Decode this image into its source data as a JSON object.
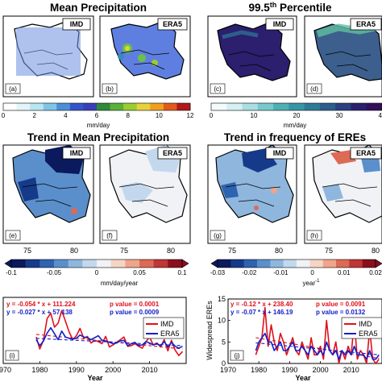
{
  "titles": {
    "mean": "Mean Precipitation",
    "pct_base": "99.5",
    "pct_sup": "th",
    "pct_rest": " Percentile",
    "trend_mean": "Trend in Mean Precipitation",
    "trend_freq": "Trend in frequency of EREs"
  },
  "maps": [
    {
      "panel": "(a)",
      "label": "IMD"
    },
    {
      "panel": "(b)",
      "label": "ERA5"
    },
    {
      "panel": "(c)",
      "label": "IMD"
    },
    {
      "panel": "(d)",
      "label": "ERA5"
    },
    {
      "panel": "(e)",
      "label": "IMD"
    },
    {
      "panel": "(f)",
      "label": "ERA5"
    },
    {
      "panel": "(g)",
      "label": "IMD"
    },
    {
      "panel": "(h)",
      "label": "ERA5"
    }
  ],
  "map_lon_ticks": [
    "75",
    "80"
  ],
  "colorbars": {
    "mean": {
      "ticks": [
        "0",
        "2",
        "4",
        "6",
        "8",
        "10",
        "12"
      ],
      "unit": "mm/day",
      "colors": [
        "#ffffff",
        "#e4f5f8",
        "#b8e6f0",
        "#7fc5e8",
        "#4d8fd6",
        "#3355c8",
        "#3a3fb8",
        "#2f8a3a",
        "#5ab03a",
        "#9acd32",
        "#e6d23a",
        "#f0a020",
        "#e05a1e",
        "#b01a1a"
      ]
    },
    "pct": {
      "ticks": [
        "0",
        "10",
        "20",
        "30",
        "40"
      ],
      "unit": "mm/day",
      "colors": [
        "#f4fbfc",
        "#d6f0f2",
        "#a9dfe2",
        "#78c8cc",
        "#4fb0b4",
        "#3895a4",
        "#2e7a97",
        "#2c5e8c",
        "#2c3f80",
        "#2b1f6e",
        "#33105a"
      ]
    },
    "trend_mean": {
      "ticks": [
        "-0.1",
        "-0.05",
        "0",
        "0.05",
        "0.1"
      ],
      "unit": "mm/day/year",
      "colors": [
        "#0a1a5c",
        "#163a8a",
        "#2e63b0",
        "#5b8fcc",
        "#8fb7dd",
        "#c3d8ec",
        "#f0f2f6",
        "#f7d5c4",
        "#f0a58a",
        "#dc6a55",
        "#c03535",
        "#8a0f1e"
      ]
    },
    "trend_freq": {
      "ticks": [
        "-0.03",
        "-0.02",
        "-0.01",
        "0",
        "0.01",
        "0.02"
      ],
      "unit_base": "year",
      "unit_sup": "-1",
      "colors": [
        "#0a1a5c",
        "#163a8a",
        "#2e63b0",
        "#5b8fcc",
        "#8fb7dd",
        "#c3d8ec",
        "#f0f2f6",
        "#f7d5c4",
        "#f0a58a",
        "#dc6a55",
        "#c03535",
        "#8a0f1e"
      ]
    }
  },
  "legend": {
    "imd": "IMD",
    "era5": "ERA5"
  },
  "colors": {
    "imd": "#e0101a",
    "era5": "#1420c8"
  },
  "chart_data": [
    {
      "type": "line",
      "panel": "(i)",
      "xlabel": "Year",
      "ylabel": "",
      "xlim": [
        1970,
        2020
      ],
      "x_ticks": [
        "1970",
        "1980",
        "1990",
        "2000",
        "2010"
      ],
      "eq_imd": "y = -0.054 * x + 111.224",
      "p_imd": "p value = 0.0001",
      "eq_era5": "y = -0.027 * x + 57.138",
      "p_era5": "p value = 0.0009",
      "x": [
        1979,
        1980,
        1981,
        1982,
        1983,
        1984,
        1985,
        1986,
        1987,
        1988,
        1989,
        1990,
        1991,
        1992,
        1993,
        1994,
        1995,
        1996,
        1997,
        1998,
        1999,
        2000,
        2001,
        2002,
        2003,
        2004,
        2005,
        2006,
        2007,
        2008,
        2009,
        2010,
        2011,
        2012,
        2013,
        2014,
        2015,
        2016,
        2017,
        2018,
        2019
      ],
      "series": [
        {
          "name": "IMD",
          "values": [
            4.0,
            2.2,
            3.5,
            6.8,
            7.6,
            5.5,
            6.1,
            8.0,
            6.4,
            4.8,
            3.6,
            4.2,
            5.3,
            3.8,
            4.1,
            3.1,
            3.5,
            3.3,
            3.0,
            4.1,
            2.5,
            2.8,
            3.2,
            3.6,
            4.0,
            2.6,
            2.7,
            3.0,
            2.6,
            2.3,
            3.3,
            4.0,
            2.8,
            3.1,
            2.5,
            3.6,
            1.9,
            3.5,
            2.0,
            1.2,
            1.8
          ]
        },
        {
          "name": "ERA5",
          "values": [
            3.6,
            2.7,
            3.4,
            4.6,
            5.4,
            4.5,
            3.6,
            4.9,
            4.0,
            3.8,
            3.7,
            3.8,
            4.3,
            4.0,
            3.9,
            3.6,
            3.9,
            4.2,
            3.5,
            3.4,
            3.2,
            3.0,
            3.1,
            3.4,
            3.5,
            2.7,
            3.0,
            3.2,
            2.7,
            2.8,
            3.3,
            3.1,
            2.8,
            3.0,
            2.7,
            3.3,
            2.5,
            3.2,
            2.6,
            2.3,
            2.6
          ]
        }
      ],
      "trend_values": {
        "IMD": [
          4.4,
          2.2
        ],
        "ERA5": [
          3.8,
          2.7
        ]
      }
    },
    {
      "type": "line",
      "panel": "(j)",
      "xlabel": "Year",
      "ylabel": "Widespread EREs",
      "xlim": [
        1970,
        2020
      ],
      "ylim": [
        0,
        15
      ],
      "x_ticks": [
        "1970",
        "1980",
        "1990",
        "2000",
        "2010"
      ],
      "y_ticks": [
        "0",
        "5",
        "10",
        "15"
      ],
      "eq_imd": "y = -0.12 * x + 238.40",
      "p_imd": "p value = 0.0091",
      "eq_era5": "y = -0.07 * x + 146.19",
      "p_era5": "p value = 0.0132",
      "x": [
        1979,
        1980,
        1981,
        1982,
        1983,
        1984,
        1985,
        1986,
        1987,
        1988,
        1989,
        1990,
        1991,
        1992,
        1993,
        1994,
        1995,
        1996,
        1997,
        1998,
        1999,
        2000,
        2001,
        2002,
        2003,
        2004,
        2005,
        2006,
        2007,
        2008,
        2009,
        2010,
        2011,
        2012,
        2013,
        2014,
        2015,
        2016,
        2017,
        2018,
        2019
      ],
      "series": [
        {
          "name": "IMD",
          "values": [
            2,
            4,
            6,
            13,
            4,
            9,
            5,
            3,
            7,
            5,
            2,
            4,
            6,
            3,
            2,
            5,
            3,
            1,
            6,
            2,
            2,
            4,
            1,
            10,
            3,
            2,
            5,
            0,
            3,
            1,
            4,
            2,
            10,
            1,
            3,
            2,
            0,
            8,
            1,
            0,
            1
          ]
        },
        {
          "name": "ERA5",
          "values": [
            3,
            5,
            6,
            7,
            5,
            5,
            3,
            4,
            5,
            3,
            3,
            4,
            5,
            3,
            3,
            4,
            3,
            2,
            4,
            3,
            2,
            3,
            2,
            5,
            3,
            2,
            3,
            1,
            3,
            2,
            3,
            2,
            4,
            2,
            2,
            2,
            1,
            3,
            1,
            1,
            2
          ]
        }
      ],
      "trend_values": {
        "IMD": [
          6.0,
          1.2
        ],
        "ERA5": [
          4.8,
          2.0
        ]
      }
    }
  ]
}
